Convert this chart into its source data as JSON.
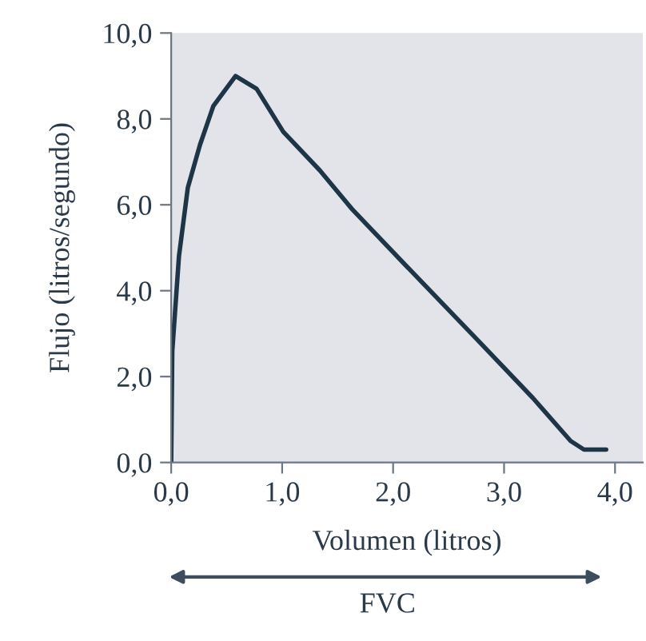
{
  "chart_data": {
    "type": "line",
    "xlabel": "Volumen (litros)",
    "ylabel": "Flujo (litros/segundo)",
    "annotations": [
      "FVC"
    ],
    "series": [
      {
        "color": "#1e3447",
        "x": [
          0,
          0.01,
          0.07,
          0.15,
          0.26,
          0.38,
          0.58,
          0.77,
          1.01,
          1.34,
          1.63,
          2.11,
          2.78,
          3.26,
          3.6,
          3.72,
          3.92
        ],
        "values": [
          0,
          2.6,
          4.8,
          6.4,
          7.4,
          8.3,
          9.0,
          8.7,
          7.7,
          6.8,
          5.9,
          4.6,
          2.8,
          1.5,
          0.5,
          0.3,
          0.3
        ]
      }
    ],
    "xlim": [
      0,
      4.25
    ],
    "ylim": [
      0,
      10
    ],
    "xticks": [
      {
        "value": 0,
        "label": "0,0"
      },
      {
        "value": 1,
        "label": "1,0"
      },
      {
        "value": 2,
        "label": "2,0"
      },
      {
        "value": 3,
        "label": "3,0"
      },
      {
        "value": 4,
        "label": "4,0"
      }
    ],
    "yticks": [
      {
        "value": 0,
        "label": "0,0"
      },
      {
        "value": 2,
        "label": "2,0"
      },
      {
        "value": 4,
        "label": "4,0"
      },
      {
        "value": 6,
        "label": "6,0"
      },
      {
        "value": 8,
        "label": "8,0"
      },
      {
        "value": 10,
        "label": "10,0"
      }
    ],
    "grid": false,
    "legend": false,
    "marker": "none",
    "line_style": "solid"
  }
}
